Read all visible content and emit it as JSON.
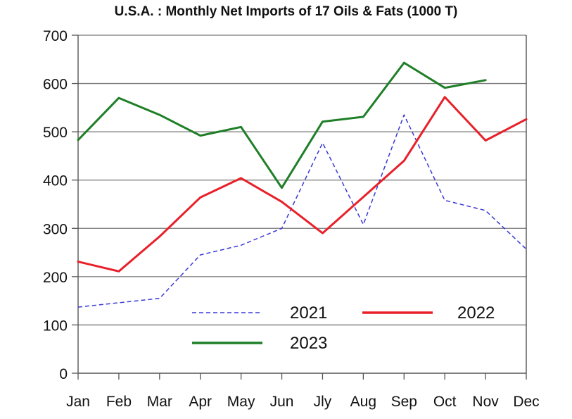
{
  "chart_data": {
    "type": "line",
    "title": "U.S.A. : Monthly Net Imports of 17 Oils & Fats (1000 T)",
    "xlabel": "",
    "ylabel": "",
    "categories": [
      "Jan",
      "Feb",
      "Mar",
      "Apr",
      "May",
      "Jun",
      "Jly",
      "Aug",
      "Sep",
      "Oct",
      "Nov",
      "Dec"
    ],
    "ylim": [
      0,
      700
    ],
    "yticks": [
      0,
      100,
      200,
      300,
      400,
      500,
      600,
      700
    ],
    "grid": true,
    "legend_position": "lower-center",
    "series": [
      {
        "name": "2021",
        "color": "#3a3ad6",
        "style": "dashed",
        "values": [
          137,
          146,
          155,
          245,
          265,
          300,
          477,
          308,
          535,
          358,
          337,
          257
        ]
      },
      {
        "name": "2022",
        "color": "#e8202a",
        "style": "solid",
        "values": [
          231,
          211,
          283,
          364,
          404,
          355,
          290,
          365,
          440,
          572,
          482,
          526
        ]
      },
      {
        "name": "2023",
        "color": "#1f7f27",
        "style": "solid",
        "values": [
          483,
          570,
          535,
          492,
          510,
          384,
          521,
          531,
          643,
          591,
          607,
          null
        ]
      }
    ]
  }
}
